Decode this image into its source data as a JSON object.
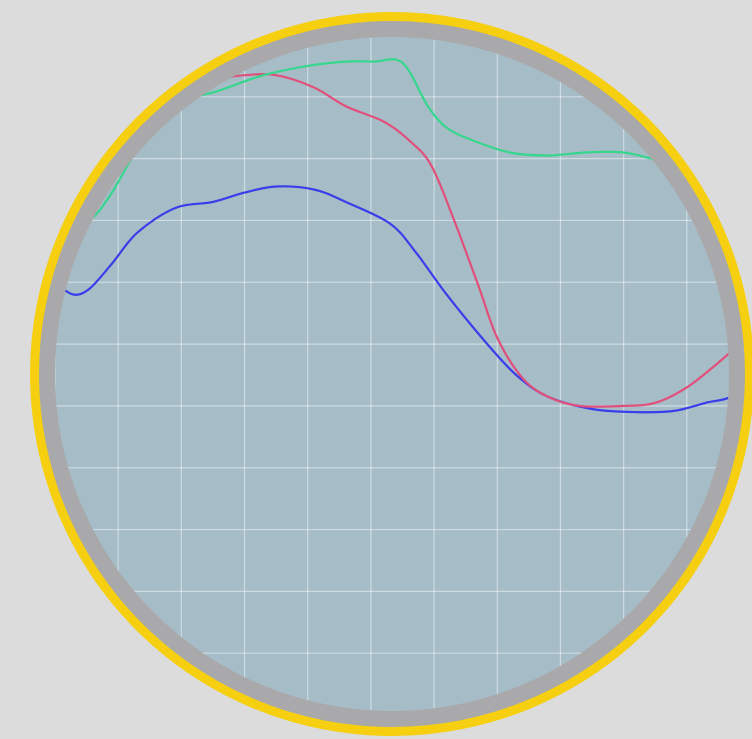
{
  "colors": {
    "page_background": "#dcdcdc",
    "bezel_outer": "#f5cf10",
    "bezel_inner": "#a9a9ab",
    "screen": "#a6bdc8",
    "grid": "#ffffff"
  },
  "chart_data": {
    "type": "line",
    "title": "",
    "xlabel": "",
    "ylabel": "",
    "grid": true,
    "xlim": [
      0,
      11
    ],
    "ylim": [
      0,
      11
    ],
    "series": [
      {
        "color": "#3a3dea",
        "points": [
          [
            0.05,
            6.95
          ],
          [
            0.3,
            6.8
          ],
          [
            0.55,
            6.9
          ],
          [
            0.9,
            7.3
          ],
          [
            1.3,
            7.8
          ],
          [
            1.9,
            8.2
          ],
          [
            2.5,
            8.3
          ],
          [
            3.0,
            8.45
          ],
          [
            3.5,
            8.55
          ],
          [
            4.1,
            8.5
          ],
          [
            4.6,
            8.3
          ],
          [
            5.3,
            7.95
          ],
          [
            5.7,
            7.5
          ],
          [
            6.2,
            6.8
          ],
          [
            6.8,
            6.05
          ],
          [
            7.3,
            5.5
          ],
          [
            7.8,
            5.15
          ],
          [
            8.5,
            4.95
          ],
          [
            9.2,
            4.9
          ],
          [
            9.8,
            4.92
          ],
          [
            10.3,
            5.05
          ],
          [
            10.7,
            5.15
          ],
          [
            11.0,
            5.45
          ]
        ]
      },
      {
        "color": "#e0507a",
        "points": [
          [
            1.5,
            9.95
          ],
          [
            2.0,
            10.2
          ],
          [
            2.5,
            10.28
          ],
          [
            3.0,
            10.35
          ],
          [
            3.5,
            10.35
          ],
          [
            4.1,
            10.15
          ],
          [
            4.6,
            9.85
          ],
          [
            5.2,
            9.6
          ],
          [
            5.6,
            9.3
          ],
          [
            5.95,
            8.9
          ],
          [
            6.3,
            8.05
          ],
          [
            6.7,
            6.95
          ],
          [
            7.0,
            6.1
          ],
          [
            7.4,
            5.45
          ],
          [
            7.8,
            5.15
          ],
          [
            8.3,
            5.0
          ],
          [
            9.0,
            5.0
          ],
          [
            9.5,
            5.05
          ],
          [
            10.0,
            5.3
          ],
          [
            10.5,
            5.7
          ],
          [
            11.0,
            6.15
          ]
        ]
      },
      {
        "color": "#36d78c",
        "points": [
          [
            0.35,
            8.0
          ],
          [
            0.6,
            8.05
          ],
          [
            0.9,
            8.45
          ],
          [
            1.4,
            9.3
          ],
          [
            2.0,
            9.9
          ],
          [
            2.6,
            10.1
          ],
          [
            3.3,
            10.35
          ],
          [
            4.0,
            10.5
          ],
          [
            4.6,
            10.57
          ],
          [
            5.05,
            10.57
          ],
          [
            5.5,
            10.55
          ],
          [
            5.9,
            9.85
          ],
          [
            6.2,
            9.5
          ],
          [
            6.6,
            9.3
          ],
          [
            7.2,
            9.1
          ],
          [
            7.8,
            9.05
          ],
          [
            8.4,
            9.1
          ],
          [
            9.0,
            9.1
          ],
          [
            9.6,
            8.95
          ],
          [
            10.2,
            8.75
          ],
          [
            10.7,
            8.6
          ]
        ]
      }
    ]
  }
}
